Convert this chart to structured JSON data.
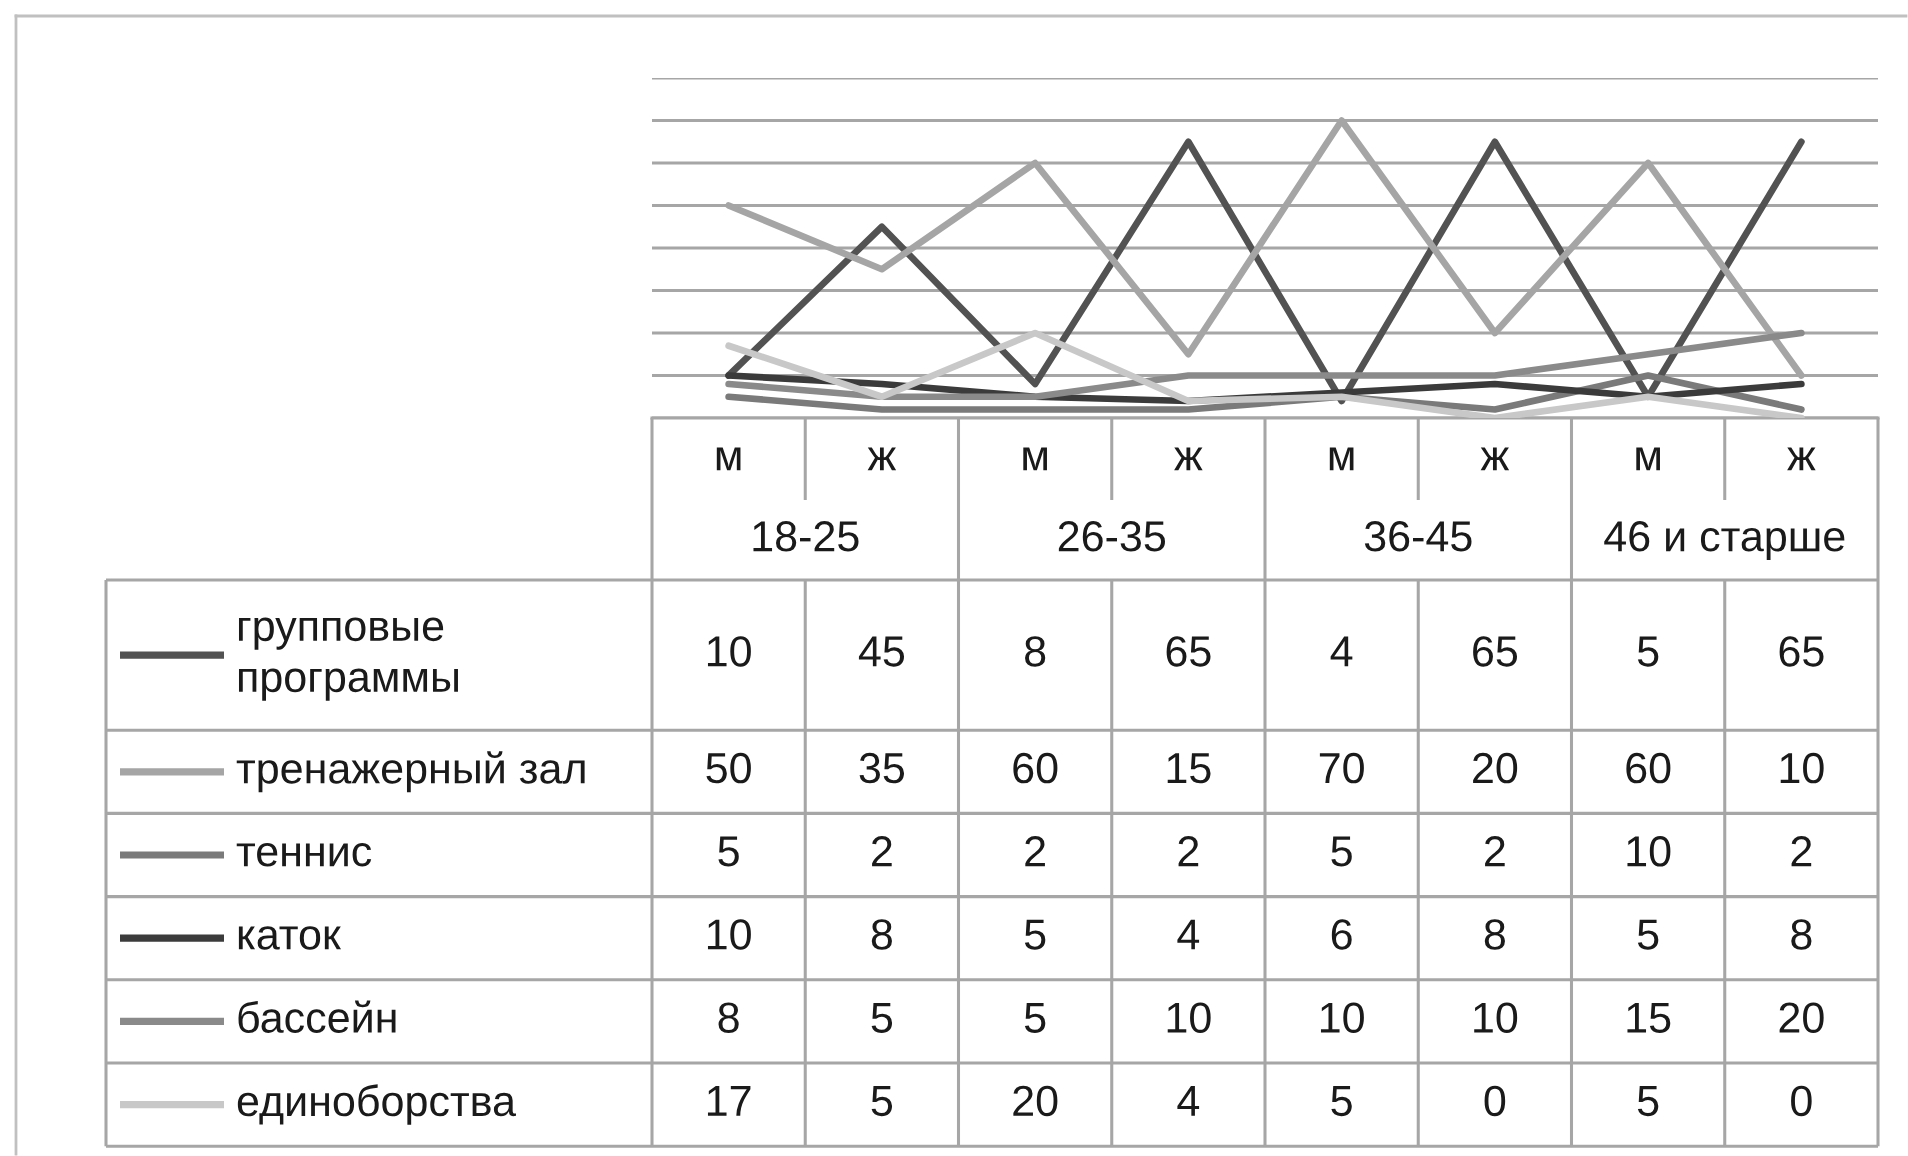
{
  "chart_data": {
    "type": "line",
    "categories": [
      "м",
      "ж",
      "м",
      "ж",
      "м",
      "ж",
      "м",
      "ж"
    ],
    "annotations": [
      "18-25",
      "26-35",
      "36-45",
      "46 и старше"
    ],
    "series": [
      {
        "name": "групповые программы",
        "color": "#525252",
        "values": [
          10,
          45,
          8,
          65,
          4,
          65,
          5,
          65
        ]
      },
      {
        "name": "тренажерный зал",
        "color": "#a5a5a5",
        "values": [
          50,
          35,
          60,
          15,
          70,
          20,
          60,
          10
        ]
      },
      {
        "name": "теннис",
        "color": "#7a7a7a",
        "values": [
          5,
          2,
          2,
          2,
          5,
          2,
          10,
          2
        ]
      },
      {
        "name": "каток",
        "color": "#3b3b3b",
        "values": [
          10,
          8,
          5,
          4,
          6,
          8,
          5,
          8
        ]
      },
      {
        "name": "бассейн",
        "color": "#8a8a8a",
        "values": [
          8,
          5,
          5,
          10,
          10,
          10,
          15,
          20
        ]
      },
      {
        "name": "единоборства",
        "color": "#c8c8c8",
        "values": [
          17,
          5,
          20,
          4,
          5,
          0,
          5,
          0
        ]
      }
    ],
    "ylim": [
      0,
      80
    ],
    "yticks": [
      {
        "value": 0,
        "label": null
      },
      {
        "value": 10,
        "label": null
      },
      {
        "value": 20,
        "label": null
      },
      {
        "value": 30,
        "label": null
      },
      {
        "value": 40,
        "label": null
      },
      {
        "value": 50,
        "label": null
      },
      {
        "value": 60,
        "label": null
      },
      {
        "value": 70,
        "label": null
      },
      {
        "value": 80,
        "label": null
      }
    ],
    "grid": "y",
    "tick_labels": "x",
    "legend": "bottom",
    "data_labels": true
  }
}
